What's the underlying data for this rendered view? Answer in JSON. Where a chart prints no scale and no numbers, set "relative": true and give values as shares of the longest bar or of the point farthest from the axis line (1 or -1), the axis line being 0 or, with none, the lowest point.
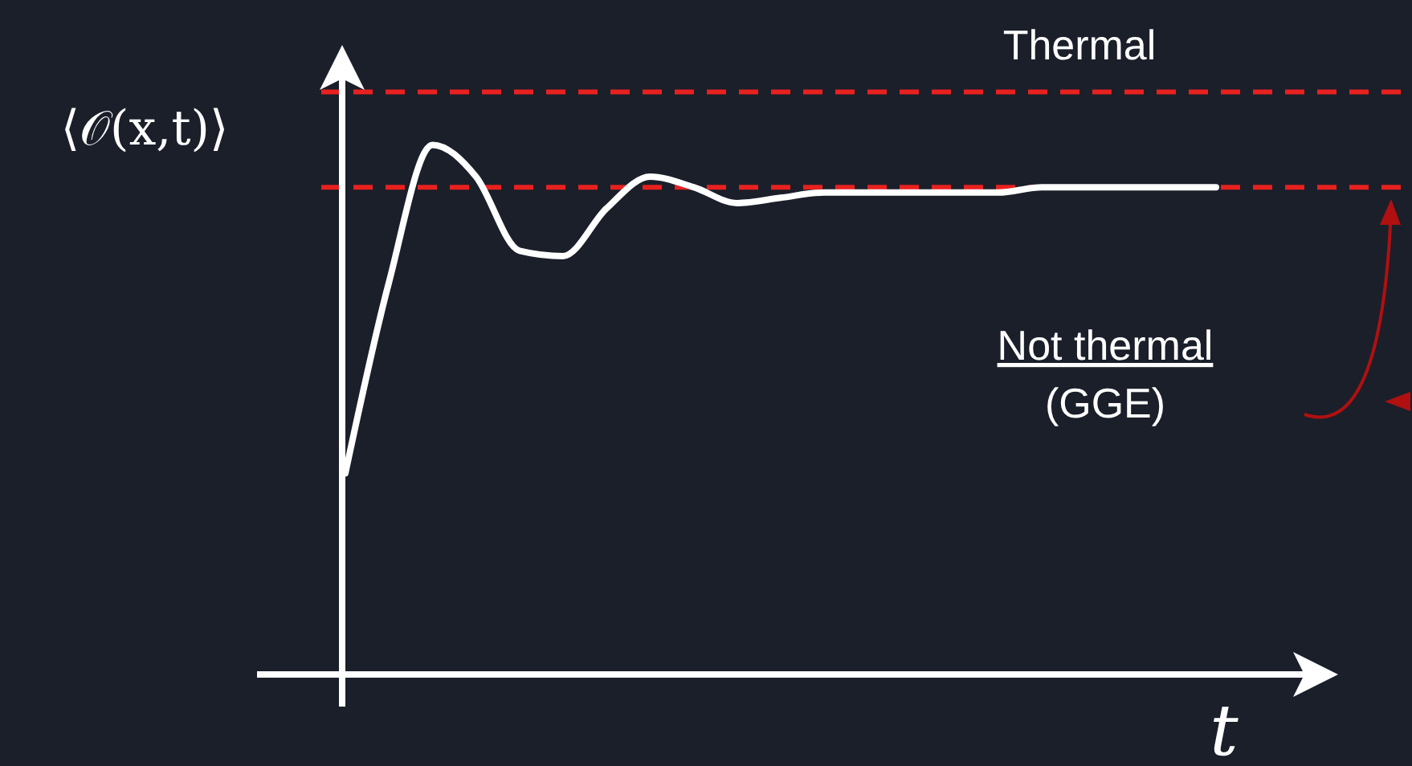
{
  "chart_data": {
    "type": "line",
    "relative": true,
    "xlabel": "t",
    "ylabel": "⟨𝒪(x,t)⟩",
    "annotations": [
      "Not thermal\n(GGE)"
    ],
    "categories": [
      null,
      null,
      null,
      null,
      null,
      null,
      null,
      null,
      null,
      null,
      null,
      null,
      null,
      null,
      null,
      null,
      null,
      null,
      null,
      null,
      null
    ],
    "series": [
      {
        "color": "#ffffff",
        "values": [
          0.38,
          0.74,
          1,
          0.94,
          0.8,
          0.79,
          0.88,
          0.94,
          0.92,
          0.89,
          0.9,
          0.91,
          0.91,
          0.91,
          0.91,
          0.91,
          0.92,
          0.92,
          0.92,
          0.92,
          0.92
        ]
      }
    ],
    "ref_lines": [
      {
        "axis": "y",
        "value": 1.1,
        "label": "Thermal",
        "color": "#e8211f",
        "line_style": "dashed"
      },
      {
        "axis": "y",
        "value": 0.92,
        "color": "#e8211f",
        "line_style": "dashed"
      }
    ],
    "marker": "none",
    "line_style": "solid"
  }
}
